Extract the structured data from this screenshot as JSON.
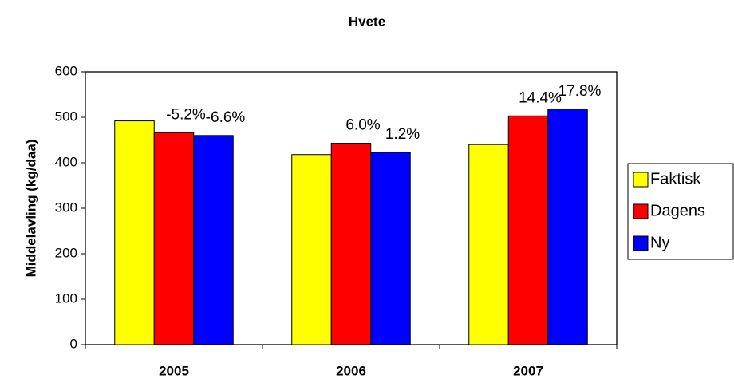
{
  "chart_data": {
    "type": "bar",
    "title": "Hvete",
    "y_label": "Middelavling (kg/daa)",
    "categories": [
      "2005",
      "2006",
      "2007"
    ],
    "series": [
      {
        "name": "Faktisk",
        "color": "#ffff00",
        "values": [
          492,
          418,
          440
        ]
      },
      {
        "name": "Dagens",
        "color": "#ff0000",
        "values": [
          466,
          443,
          503
        ],
        "annotations": [
          "-5.2%",
          "6.0%",
          "14.4%"
        ]
      },
      {
        "name": "Ny",
        "color": "#0000ff",
        "values": [
          460,
          423,
          518
        ],
        "annotations": [
          "-6.6%",
          "1.2%",
          "17.8%"
        ]
      }
    ],
    "ylim": [
      0,
      600
    ],
    "yticks": [
      0,
      100,
      200,
      300,
      400,
      500,
      600
    ],
    "grid": false,
    "legend": "right"
  }
}
